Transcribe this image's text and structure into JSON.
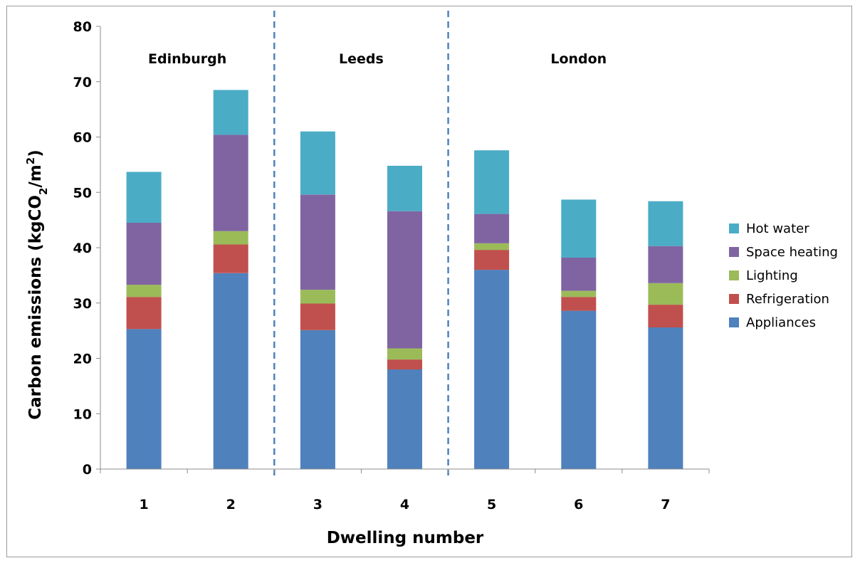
{
  "chart_data": {
    "type": "bar",
    "stacked": true,
    "categories": [
      "1",
      "2",
      "3",
      "4",
      "5",
      "6",
      "7"
    ],
    "xlabel": "Dwelling number",
    "ylabel_parts": [
      "Carbon emissions (kgCO",
      "2",
      "/m",
      "2",
      ")"
    ],
    "ylim": [
      0,
      80
    ],
    "yticks": [
      0,
      10,
      20,
      30,
      40,
      50,
      60,
      70,
      80
    ],
    "grid": false,
    "legend_position": "right",
    "series": [
      {
        "name": "Appliances",
        "color": "#4F81BD",
        "values": [
          25.3,
          35.4,
          25.1,
          18.0,
          36.0,
          28.6,
          25.6
        ]
      },
      {
        "name": "Refrigeration",
        "color": "#C0504D",
        "values": [
          5.8,
          5.2,
          4.8,
          1.8,
          3.6,
          2.5,
          4.1
        ]
      },
      {
        "name": "Lighting",
        "color": "#9BBB59",
        "values": [
          2.2,
          2.4,
          2.5,
          2.0,
          1.2,
          1.1,
          3.9
        ]
      },
      {
        "name": "Space heating",
        "color": "#8064A2",
        "values": [
          11.2,
          17.4,
          17.2,
          24.8,
          5.3,
          6.0,
          6.7
        ]
      },
      {
        "name": "Hot water",
        "color": "#4BACC6",
        "values": [
          9.2,
          8.1,
          11.4,
          8.2,
          11.5,
          10.5,
          8.1
        ]
      }
    ],
    "regions": [
      {
        "label": "Edinburgh",
        "categories": [
          "1",
          "2"
        ]
      },
      {
        "label": "Leeds",
        "categories": [
          "3",
          "4"
        ]
      },
      {
        "label": "London",
        "categories": [
          "5",
          "6",
          "7"
        ]
      }
    ],
    "separator_color": "#4F81BD"
  }
}
